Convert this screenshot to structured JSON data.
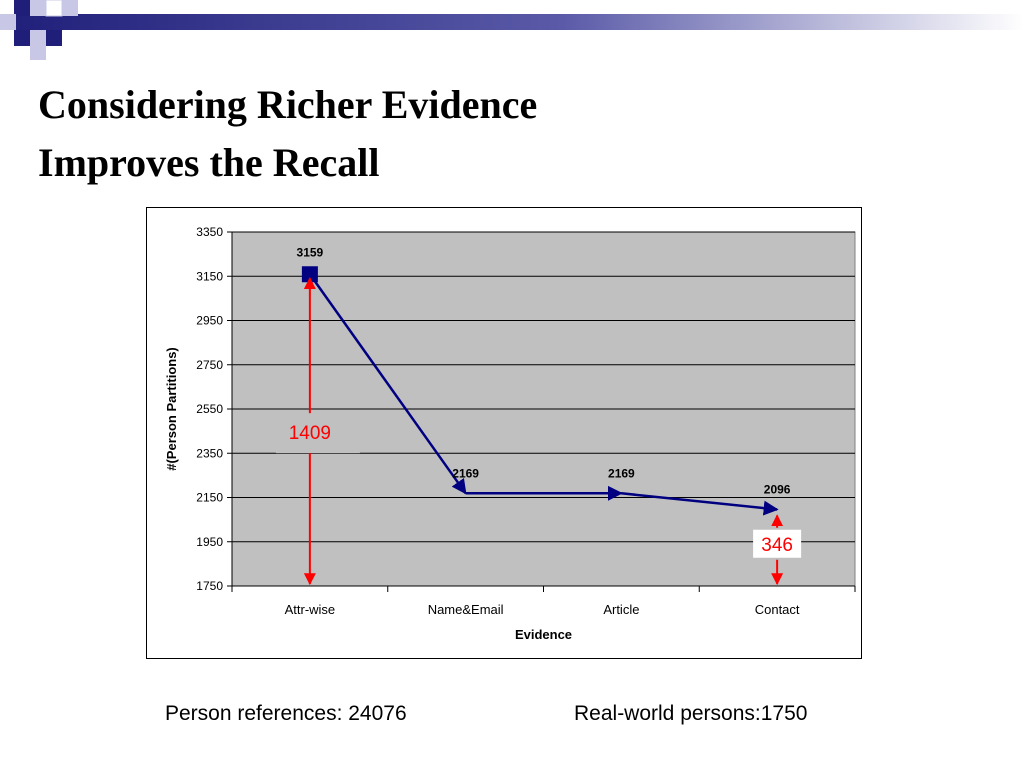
{
  "slide": {
    "title_line1": "Considering Richer Evidence",
    "title_line2": "Improves the Recall",
    "footer_left": "Person references: 24076",
    "footer_right": "Real-world persons:1750"
  },
  "colors": {
    "deco_blue": "#1f1f7a",
    "deco_light": "#c8c8e6",
    "plot_bg": "#c0c0c0",
    "series": "#000080",
    "annotation": "#ff0000"
  },
  "chart_data": {
    "type": "line",
    "title": "",
    "xlabel": "Evidence",
    "ylabel": "#(Person Partitions)",
    "categories": [
      "Attr-wise",
      "Name&Email",
      "Article",
      "Contact"
    ],
    "series": [
      {
        "values": [
          3159,
          2169,
          2169,
          2096
        ]
      }
    ],
    "data_labels": [
      "3159",
      "2169",
      "2169",
      "2096"
    ],
    "ylim": [
      1750,
      3350
    ],
    "yticks": [
      1750,
      1950,
      2150,
      2350,
      2550,
      2750,
      2950,
      3150,
      3350
    ],
    "grid": true,
    "legend": "none",
    "annotations": [
      {
        "label": "1409",
        "from": 1750,
        "to": 3159,
        "category_index": 0
      },
      {
        "label": "346",
        "from": 1750,
        "to": 2096,
        "category_index": 3
      }
    ]
  }
}
